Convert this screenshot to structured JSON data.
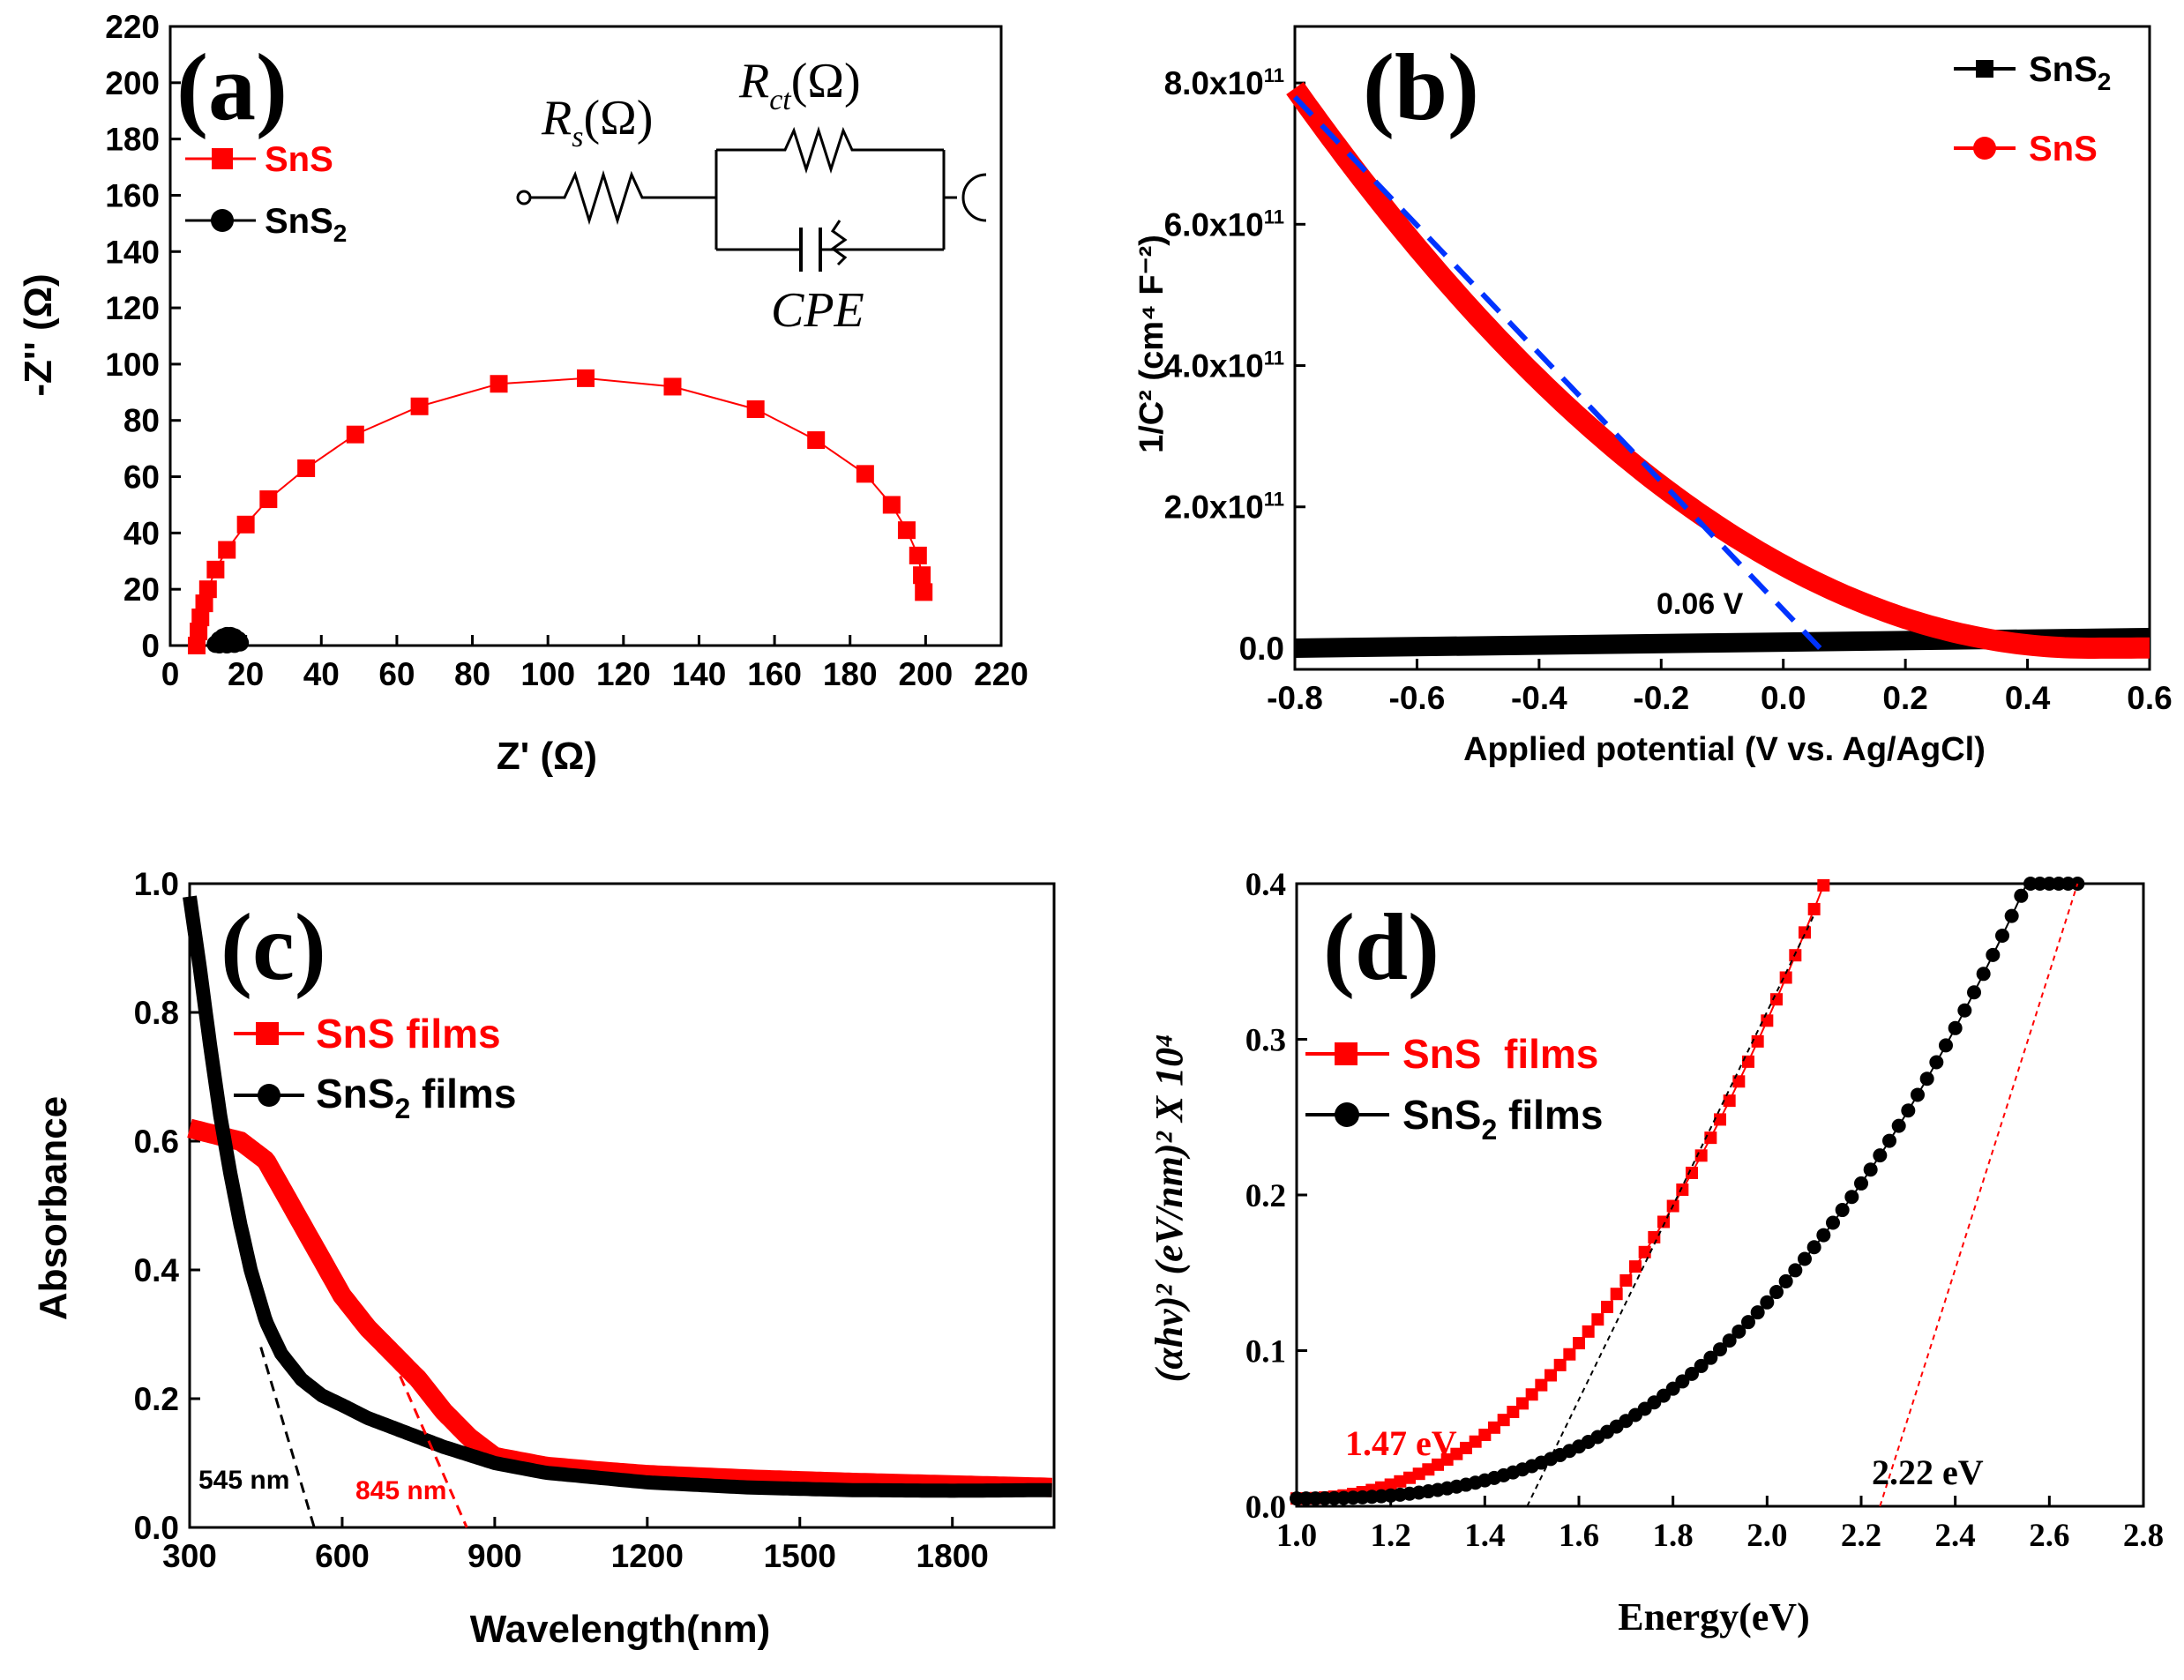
{
  "colors": {
    "sns": "#ff0000",
    "sns2": "#000000",
    "fit_b": "#0033ff"
  },
  "chart_data": [
    {
      "panel": "(a)",
      "type": "scatter",
      "xlabel": "Z' (Ω)",
      "ylabel": "-Z'' (Ω)",
      "xlim": [
        0,
        220
      ],
      "ylim": [
        0,
        220
      ],
      "xticks": [
        "0",
        "20",
        "40",
        "60",
        "80",
        "100",
        "120",
        "140",
        "160",
        "180",
        "200",
        "220"
      ],
      "yticks": [
        "0",
        "20",
        "40",
        "60",
        "80",
        "100",
        "120",
        "140",
        "160",
        "180",
        "200",
        "220"
      ],
      "legend": [
        "SnS",
        "SnS2"
      ],
      "circuit": {
        "rs": "R",
        "rs_sub": "s",
        "rs_unit": "(Ω)",
        "rct": "R",
        "rct_sub": "ct",
        "rct_unit": "(Ω)",
        "cpe": "CPE"
      },
      "series": [
        {
          "name": "SnS",
          "color": "#ff0000",
          "x": [
            7,
            7.5,
            8,
            9,
            10,
            12,
            15,
            20,
            26,
            36,
            49,
            66,
            87,
            110,
            133,
            155,
            171,
            184,
            191,
            195,
            198,
            199,
            199.5
          ],
          "y": [
            0,
            5,
            10,
            15,
            20,
            27,
            34,
            43,
            52,
            63,
            75,
            85,
            93,
            95,
            92,
            84,
            73,
            61,
            50,
            41,
            32,
            25,
            19
          ]
        },
        {
          "name": "SnS2",
          "color": "#000000",
          "x": [
            12,
            13,
            14,
            15,
            16,
            17,
            18,
            18.5,
            17,
            15,
            13
          ],
          "y": [
            0.5,
            2,
            3,
            3.5,
            3.5,
            3,
            2,
            1,
            0.5,
            0.3,
            0.3
          ]
        }
      ]
    },
    {
      "panel": "(b)",
      "type": "line",
      "xlabel": "Applied potential (V vs. Ag/AgCl)",
      "ylabel": "1/C² (cm⁴ F⁻²)",
      "xlim": [
        -0.8,
        0.6
      ],
      "ylim": [
        -0.3,
        8.8
      ],
      "y_scale_label": "x10^11",
      "xticks": [
        "-0.8",
        "-0.6",
        "-0.4",
        "-0.2",
        "0.0",
        "0.2",
        "0.4",
        "0.6"
      ],
      "yticks": [
        "0.0",
        "2.0x10",
        "4.0x10",
        "6.0x10",
        "8.0x10"
      ],
      "ytick_exp": "11",
      "legend": [
        "SnS2",
        "SnS"
      ],
      "annotation": "0.06 V",
      "fit_line": {
        "x": [
          -0.8,
          0.06
        ],
        "y": [
          7.8,
          0
        ]
      },
      "series": [
        {
          "name": "SnS",
          "color": "#ff0000",
          "vertex": 0.5,
          "a": 4.69,
          "y_scale": 100000000000.0
        },
        {
          "name": "SnS2",
          "color": "#000000",
          "x0": -0.8,
          "y0": 0.0,
          "x1": 0.6,
          "y1": 0.15
        }
      ]
    },
    {
      "panel": "(c)",
      "type": "line",
      "xlabel": "Wavelength(nm)",
      "ylabel": "Absorbance",
      "xlim": [
        300,
        2000
      ],
      "ylim": [
        0,
        1.0
      ],
      "xticks": [
        "300",
        "600",
        "900",
        "1200",
        "1500",
        "1800"
      ],
      "yticks": [
        "0.0",
        "0.2",
        "0.4",
        "0.6",
        "0.8",
        "1.0"
      ],
      "legend": [
        "SnS films",
        "SnS2 films"
      ],
      "annotations": [
        "545 nm",
        "845 nm"
      ],
      "series": [
        {
          "name": "SnS films",
          "color": "#ff0000",
          "x": [
            300,
            350,
            400,
            450,
            500,
            550,
            600,
            650,
            700,
            750,
            800,
            850,
            900,
            1000,
            1100,
            1200,
            1400,
            1600,
            1800,
            2000
          ],
          "y": [
            0.62,
            0.61,
            0.6,
            0.57,
            0.5,
            0.43,
            0.36,
            0.31,
            0.27,
            0.23,
            0.18,
            0.14,
            0.11,
            0.095,
            0.088,
            0.082,
            0.075,
            0.07,
            0.066,
            0.062
          ]
        },
        {
          "name": "SnS2 films",
          "color": "#000000",
          "x": [
            300,
            320,
            340,
            360,
            380,
            400,
            420,
            450,
            480,
            520,
            560,
            600,
            650,
            700,
            750,
            800,
            900,
            1000,
            1200,
            1400,
            1600,
            1800,
            2000
          ],
          "y": [
            0.98,
            0.87,
            0.75,
            0.64,
            0.55,
            0.47,
            0.4,
            0.32,
            0.27,
            0.23,
            0.205,
            0.19,
            0.17,
            0.155,
            0.14,
            0.125,
            0.1,
            0.085,
            0.07,
            0.062,
            0.058,
            0.057,
            0.058
          ]
        }
      ]
    },
    {
      "panel": "(d)",
      "type": "line",
      "xlabel": "Energy(eV)",
      "ylabel": "(αhν)² (eV/nm)² X 10⁴",
      "xlim": [
        1.0,
        2.8
      ],
      "ylim": [
        0,
        0.4
      ],
      "xticks": [
        "1.0",
        "1.2",
        "1.4",
        "1.6",
        "1.8",
        "2.0",
        "2.2",
        "2.4",
        "2.6",
        "2.8"
      ],
      "yticks": [
        "0.0",
        "0.1",
        "0.2",
        "0.3",
        "0.4"
      ],
      "legend": [
        "SnS  films",
        "SnS2 films"
      ],
      "annotations": [
        "1.47 eV",
        "2.22 eV"
      ],
      "series": [
        {
          "name": "SnS  films",
          "color": "#ff0000",
          "x_start": 1.0,
          "x_end": 2.12,
          "onset": 1.0,
          "coef": 0.307,
          "power": 2.2
        },
        {
          "name": "SnS2 films",
          "color": "#000000",
          "x_start": 1.0,
          "x_end": 2.67,
          "onset": 1.0,
          "coef": 0.126,
          "power": 2.6
        }
      ],
      "fits": [
        {
          "x": [
            1.49,
            2.1
          ],
          "y": [
            0,
            0.38
          ]
        },
        {
          "x": [
            2.24,
            2.66
          ],
          "y": [
            0,
            0.4
          ]
        }
      ]
    }
  ]
}
